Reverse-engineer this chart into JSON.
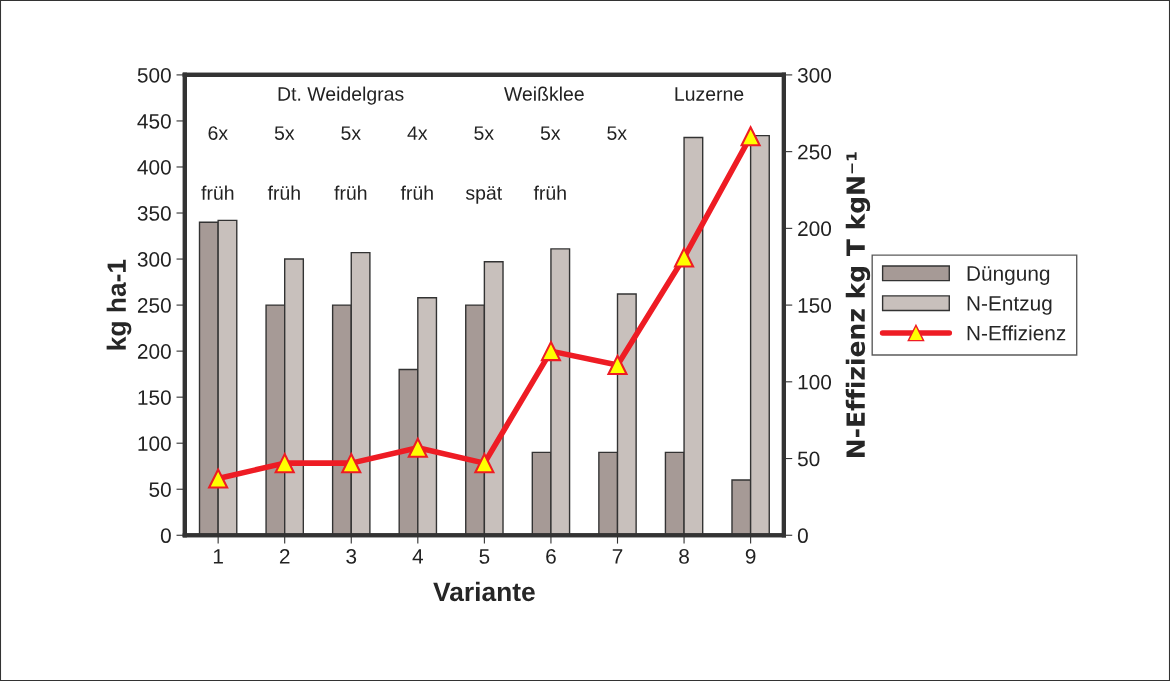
{
  "chart_data": {
    "type": "bar",
    "xlabel": "Variante",
    "ylabel": "kg ha-1",
    "y2label": "N-Effizienz kg T kgN⁻¹",
    "categories": [
      "1",
      "2",
      "3",
      "4",
      "5",
      "6",
      "7",
      "8",
      "9"
    ],
    "series": [
      {
        "name": "Düngung",
        "color": "#a69a96",
        "values": [
          340,
          250,
          250,
          180,
          250,
          90,
          90,
          90,
          60
        ]
      },
      {
        "name": "N-Entzug",
        "color": "#c8c0bc",
        "values": [
          342,
          300,
          307,
          258,
          297,
          311,
          262,
          432,
          434
        ]
      },
      {
        "name": "N-Effizienz",
        "type": "line",
        "axis": "y2",
        "color": "#ee1c24",
        "marker": "triangle",
        "values": [
          37,
          47,
          47,
          57,
          47,
          120,
          111,
          181,
          260
        ]
      }
    ],
    "ylim": [
      0,
      500
    ],
    "yticks": [
      0,
      50,
      100,
      150,
      200,
      250,
      300,
      350,
      400,
      450,
      500
    ],
    "y2lim": [
      0,
      300
    ],
    "y2ticks": [
      0,
      50,
      100,
      150,
      200,
      250,
      300
    ],
    "grid": false,
    "legend": "right",
    "annotations": [
      "Dt. Weidelgras",
      "6x",
      "5x",
      "5x",
      "4x",
      "5x",
      "5x",
      "5x",
      "früh",
      "früh",
      "früh",
      "früh",
      "spät",
      "früh",
      "Weißklee",
      "Luzerne"
    ]
  }
}
